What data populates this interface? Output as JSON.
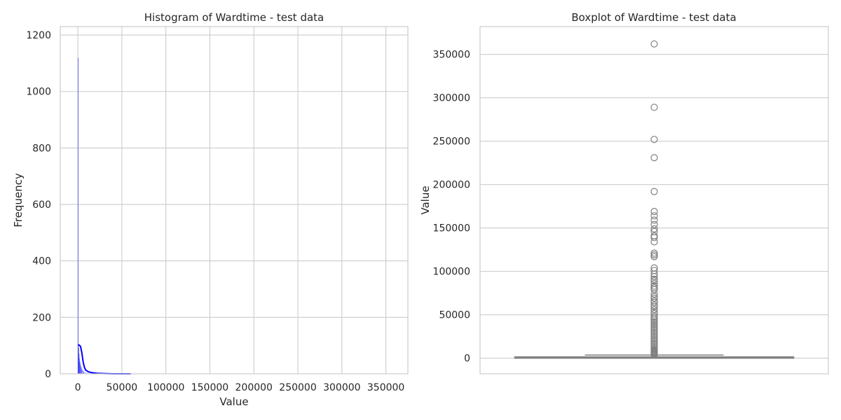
{
  "chart_data": [
    {
      "type": "histogram",
      "title": "Histogram of Wardtime - test data",
      "xlabel": "Value",
      "ylabel": "Frequency",
      "xlim": [
        -20000,
        375000
      ],
      "ylim": [
        0,
        1230
      ],
      "xticks": [
        0,
        50000,
        100000,
        150000,
        200000,
        250000,
        300000,
        350000
      ],
      "xtick_labels": [
        "0",
        "50000",
        "100000",
        "150000",
        "200000",
        "250000",
        "300000",
        "350000"
      ],
      "yticks": [
        0,
        200,
        400,
        600,
        800,
        1000,
        1200
      ],
      "ytick_labels": [
        "0",
        "200",
        "400",
        "600",
        "800",
        "1000",
        "1200"
      ],
      "bar_color": "#0000ff",
      "kde_color": "#0000ff",
      "grid": true,
      "bins": [
        {
          "x": 0,
          "value": 1120
        },
        {
          "x": 300,
          "value": 100
        },
        {
          "x": 600,
          "value": 90
        },
        {
          "x": 1000,
          "value": 70
        },
        {
          "x": 1400,
          "value": 55
        },
        {
          "x": 1900,
          "value": 45
        },
        {
          "x": 2400,
          "value": 36
        },
        {
          "x": 3000,
          "value": 28
        },
        {
          "x": 3600,
          "value": 22
        },
        {
          "x": 4300,
          "value": 17
        },
        {
          "x": 5200,
          "value": 12
        },
        {
          "x": 6200,
          "value": 9
        },
        {
          "x": 7500,
          "value": 6
        },
        {
          "x": 9000,
          "value": 4
        },
        {
          "x": 11000,
          "value": 3
        },
        {
          "x": 14000,
          "value": 2
        },
        {
          "x": 18000,
          "value": 1
        }
      ],
      "kde": [
        {
          "x": 0,
          "y": 102
        },
        {
          "x": 1500,
          "y": 102
        },
        {
          "x": 3000,
          "y": 97
        },
        {
          "x": 4500,
          "y": 75
        },
        {
          "x": 6000,
          "y": 42
        },
        {
          "x": 7500,
          "y": 22
        },
        {
          "x": 9000,
          "y": 13
        },
        {
          "x": 12000,
          "y": 7
        },
        {
          "x": 16000,
          "y": 4
        },
        {
          "x": 22000,
          "y": 2
        },
        {
          "x": 30000,
          "y": 1
        },
        {
          "x": 40000,
          "y": 0
        },
        {
          "x": 60000,
          "y": 0
        }
      ]
    },
    {
      "type": "boxplot",
      "title": "Boxplot of Wardtime - test data",
      "xlabel": "",
      "ylabel": "Value",
      "ylim": [
        -18000,
        382000
      ],
      "yticks": [
        0,
        50000,
        100000,
        150000,
        200000,
        250000,
        300000,
        350000
      ],
      "ytick_labels": [
        "0",
        "50000",
        "100000",
        "150000",
        "200000",
        "250000",
        "300000",
        "350000"
      ],
      "box_color": "#808080",
      "grid": true,
      "q1": 0,
      "median": 300,
      "q3": 1500,
      "whisker_low": 0,
      "whisker_high": 3600,
      "outliers": [
        362000,
        289000,
        252000,
        231000,
        192000,
        169000,
        164000,
        159000,
        154000,
        149000,
        146000,
        141000,
        139000,
        134000,
        121000,
        119000,
        117000,
        104000,
        101000,
        97000,
        94000,
        91000,
        89000,
        86000,
        83000,
        81000,
        79000,
        74000,
        71000,
        69000,
        66000,
        64000,
        61000,
        59000,
        56000,
        53000,
        51000,
        48000,
        46000,
        44000,
        42000,
        40000,
        38000,
        36000,
        34000,
        32000,
        30000,
        28000,
        26000,
        24000,
        22000,
        20000,
        18000,
        16000,
        14000,
        12000,
        10000,
        9000,
        8000,
        7000,
        6000,
        5000,
        4500,
        4000
      ]
    }
  ]
}
